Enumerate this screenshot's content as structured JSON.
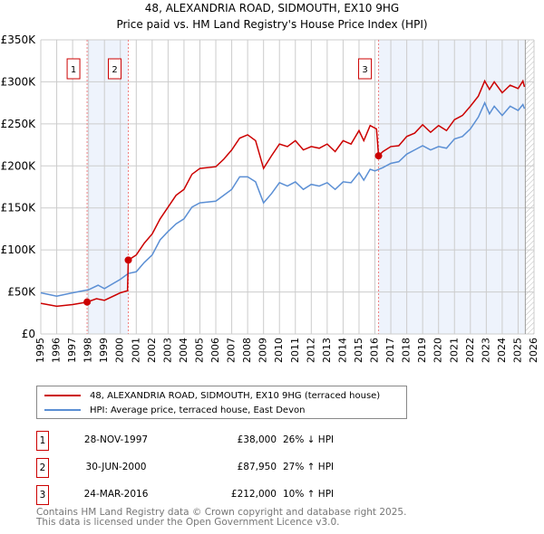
{
  "chart_data": {
    "type": "line",
    "title": "48, ALEXANDRIA ROAD, SIDMOUTH, EX10 9HG",
    "subtitle": "Price paid vs. HM Land Registry's House Price Index (HPI)",
    "xlim": [
      1995,
      2026
    ],
    "ylim": [
      0,
      350000
    ],
    "yticks": [
      0,
      50000,
      100000,
      150000,
      200000,
      250000,
      300000,
      350000
    ],
    "ytick_labels": [
      "£0",
      "£50K",
      "£100K",
      "£150K",
      "£200K",
      "£250K",
      "£300K",
      "£350K"
    ],
    "xtick_labels": [
      "1995",
      "1996",
      "1997",
      "1998",
      "1999",
      "2000",
      "2001",
      "2002",
      "2003",
      "2004",
      "2005",
      "2006",
      "2007",
      "2008",
      "2009",
      "2010",
      "2011",
      "2012",
      "2013",
      "2014",
      "2015",
      "2016",
      "2017",
      "2018",
      "2019",
      "2020",
      "2021",
      "2022",
      "2023",
      "2024",
      "2025",
      "2026"
    ],
    "grid": true,
    "shaded_ranges": [
      [
        1997.91,
        2000.5
      ],
      [
        2016.23,
        2025.4
      ]
    ],
    "future_hatch_from": 2025.45,
    "colors": {
      "property": "#cc0000",
      "hpi": "#5b8fd4",
      "shade": "#eef3fc"
    },
    "series": [
      {
        "name": "48, ALEXANDRIA ROAD, SIDMOUTH, EX10 9HG (terraced house)",
        "color": "#cc0000",
        "x": [
          1995,
          1996,
          1997,
          1997.91,
          1998.5,
          1999,
          2000,
          2000.45,
          2000.5,
          2001,
          2001.5,
          2002,
          2002.5,
          2003,
          2003.5,
          2004,
          2004.5,
          2005,
          2006,
          2006.5,
          2007,
          2007.5,
          2008,
          2008.5,
          2009,
          2009.5,
          2010,
          2010.5,
          2011,
          2011.5,
          2012,
          2012.5,
          2013,
          2013.5,
          2014,
          2014.5,
          2015,
          2015.3,
          2015.7,
          2016.1,
          2016.23,
          2016.5,
          2017,
          2017.5,
          2018,
          2018.5,
          2019,
          2019.5,
          2020,
          2020.5,
          2021,
          2021.5,
          2022,
          2022.5,
          2022.9,
          2023.2,
          2023.5,
          2024,
          2024.5,
          2025,
          2025.3,
          2025.4
        ],
        "y": [
          36500,
          33000,
          35000,
          38000,
          42000,
          40000,
          49000,
          51500,
          87950,
          94000,
          108000,
          119000,
          137000,
          151000,
          165000,
          172000,
          190000,
          197000,
          199000,
          208000,
          219000,
          233000,
          237000,
          230000,
          197000,
          212000,
          226000,
          223000,
          230000,
          219000,
          223000,
          221000,
          226000,
          217000,
          230000,
          226000,
          242000,
          230000,
          248000,
          244000,
          212000,
          217000,
          223000,
          224000,
          235000,
          239000,
          249000,
          240000,
          248000,
          242000,
          255000,
          260000,
          271000,
          283000,
          301000,
          291000,
          300000,
          287000,
          296000,
          292000,
          301000,
          294000
        ]
      },
      {
        "name": "HPI: Average price, terraced house, East Devon",
        "color": "#5b8fd4",
        "x": [
          1995,
          1996,
          1997,
          1998,
          1998.6,
          1999,
          2000,
          2000.5,
          2001,
          2001.5,
          2002,
          2002.5,
          2003,
          2003.5,
          2004,
          2004.5,
          2005,
          2006,
          2006.5,
          2007,
          2007.5,
          2008,
          2008.5,
          2009,
          2009.5,
          2010,
          2010.5,
          2011,
          2011.5,
          2012,
          2012.5,
          2013,
          2013.5,
          2014,
          2014.5,
          2015,
          2015.3,
          2015.7,
          2016,
          2016.5,
          2017,
          2017.5,
          2018,
          2018.5,
          2019,
          2019.5,
          2020,
          2020.5,
          2021,
          2021.5,
          2022,
          2022.5,
          2022.9,
          2023.2,
          2023.5,
          2024,
          2024.5,
          2025,
          2025.3,
          2025.4
        ],
        "y": [
          49000,
          45000,
          49000,
          52600,
          58000,
          54000,
          65000,
          72000,
          74000,
          85000,
          94000,
          112000,
          122000,
          131000,
          137000,
          151000,
          156000,
          158000,
          165000,
          172000,
          187000,
          187000,
          181000,
          156000,
          167000,
          180000,
          176000,
          181000,
          172000,
          178000,
          176000,
          180000,
          172000,
          181000,
          180000,
          192000,
          183000,
          196000,
          194000,
          198000,
          203000,
          205000,
          214000,
          219000,
          224000,
          219000,
          223000,
          221000,
          232000,
          235000,
          244000,
          258000,
          275000,
          262000,
          271000,
          260000,
          271000,
          266000,
          273000,
          268000
        ]
      }
    ],
    "sales": [
      {
        "id": "1",
        "x": 1997.91,
        "price": 38000,
        "date": "28-NOV-1997",
        "price_label": "£38,000",
        "hpi_diff": "26% ↓ HPI"
      },
      {
        "id": "2",
        "x": 2000.5,
        "price": 87950,
        "date": "30-JUN-2000",
        "price_label": "£87,950",
        "hpi_diff": "27% ↑ HPI"
      },
      {
        "id": "3",
        "x": 2016.23,
        "price": 212000,
        "date": "24-MAR-2016",
        "price_label": "£212,000",
        "hpi_diff": "10% ↑ HPI"
      }
    ],
    "legend_placement": "below"
  },
  "footer": {
    "line1": "Contains HM Land Registry data © Crown copyright and database right 2025.",
    "line2": "This data is licensed under the Open Government Licence v3.0."
  }
}
